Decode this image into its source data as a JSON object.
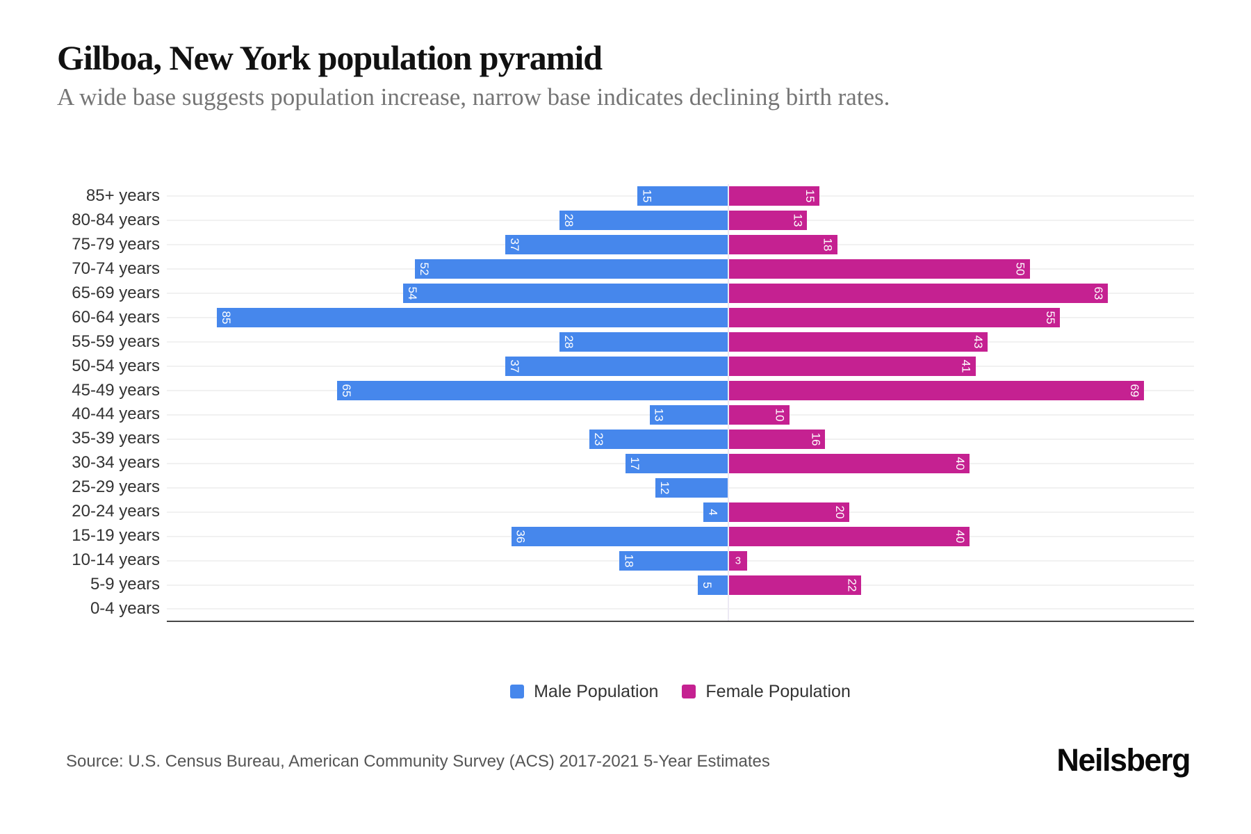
{
  "header": {
    "title": "Gilboa, New York population pyramid",
    "subtitle": "A wide base suggests population increase, narrow base indicates declining birth rates."
  },
  "legend": {
    "male_label": "Male Population",
    "female_label": "Female Population"
  },
  "footer": {
    "source": "Source: U.S. Census Bureau, American Community Survey (ACS) 2017-2021 5-Year Estimates",
    "logo": "Neilsberg"
  },
  "colors": {
    "male": "#4687EC",
    "female": "#C52191",
    "gridline": "#F1F1F1",
    "axis_line": "#474747",
    "center_line": "#ECE9F3",
    "bar_value_text": "#FFFFFF",
    "axis_label_text": "#333333",
    "subtitle_text": "#757575",
    "source_text": "#555555"
  },
  "chart_data": {
    "type": "bar",
    "variant": "population-pyramid",
    "orientation": "horizontal",
    "title": "Gilboa, New York population pyramid",
    "subtitle": "A wide base suggests population increase, narrow base indicates declining birth rates.",
    "categories": [
      "85+ years",
      "80-84 years",
      "75-79 years",
      "70-74 years",
      "65-69 years",
      "60-64 years",
      "55-59 years",
      "50-54 years",
      "45-49 years",
      "40-44 years",
      "35-39 years",
      "30-34 years",
      "25-29 years",
      "20-24 years",
      "15-19 years",
      "10-14 years",
      "5-9 years",
      "0-4 years"
    ],
    "series": [
      {
        "name": "Male Population",
        "side": "left",
        "color": "#4687EC",
        "values": [
          15,
          28,
          37,
          52,
          54,
          85,
          28,
          37,
          65,
          13,
          23,
          17,
          12,
          4,
          36,
          18,
          5,
          0
        ]
      },
      {
        "name": "Female Population",
        "side": "right",
        "color": "#C52191",
        "values": [
          15,
          13,
          18,
          50,
          63,
          55,
          43,
          41,
          69,
          10,
          16,
          40,
          0,
          20,
          40,
          3,
          22,
          0
        ]
      }
    ],
    "value_axis": {
      "male_extent": 93,
      "female_extent": 77,
      "ticks_visible": false
    },
    "grid": true,
    "legend_position": "bottom",
    "data_labels": "inside-outer-end, white, rotated 90deg (horizontal when value < 4), hidden when 0"
  }
}
